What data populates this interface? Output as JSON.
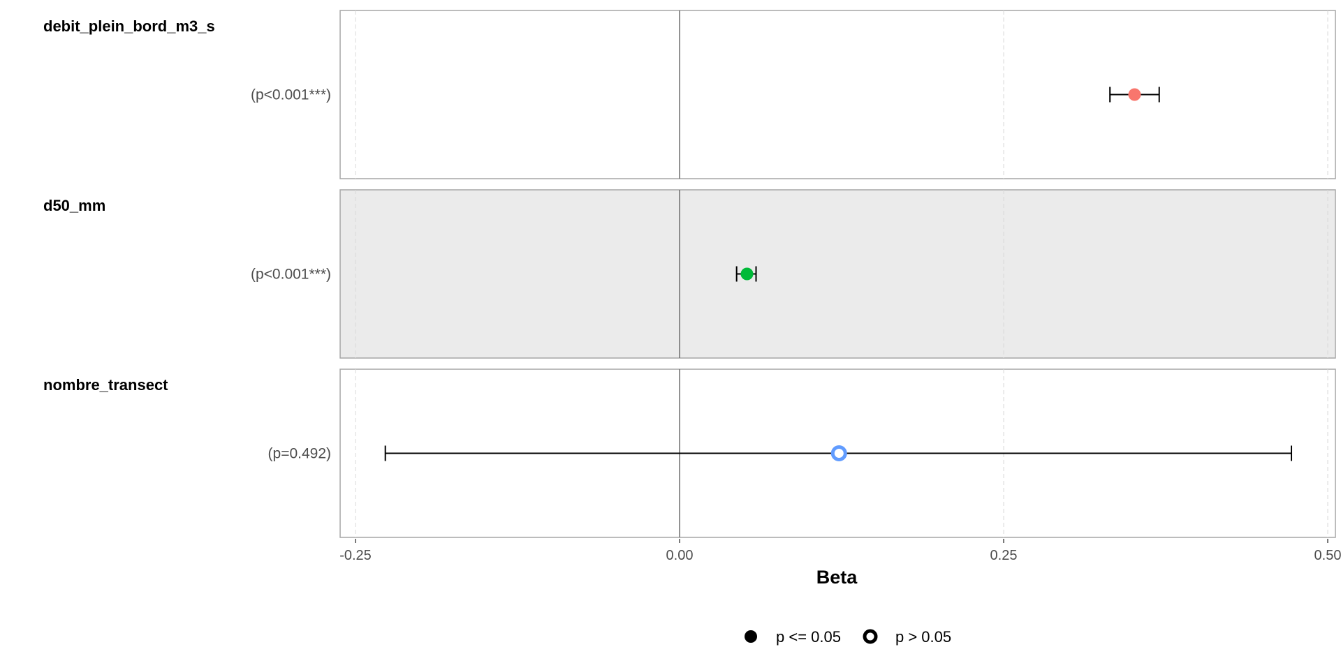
{
  "chart_data": {
    "type": "scatter",
    "subtype": "forest-plot",
    "xlabel": "Beta",
    "xlim": [
      -0.26,
      0.505
    ],
    "xticks": [
      -0.25,
      0.0,
      0.25,
      0.5
    ],
    "xtick_labels": [
      "-0.25",
      "0.00",
      "0.25",
      "0.50"
    ],
    "reference_line": 0.0,
    "grid": true,
    "facets": [
      {
        "name": "debit_plein_bord_m3_s",
        "p_label": "(p<0.001***)",
        "estimate": 0.351,
        "ci_low": 0.332,
        "ci_high": 0.37,
        "significant": true,
        "color": "#f8766d",
        "shaded": false
      },
      {
        "name": "d50_mm",
        "p_label": "(p<0.001***)",
        "estimate": 0.052,
        "ci_low": 0.044,
        "ci_high": 0.059,
        "significant": true,
        "color": "#00ba38",
        "shaded": true
      },
      {
        "name": "nombre_transect",
        "p_label": "(p=0.492)",
        "estimate": 0.123,
        "ci_low": -0.227,
        "ci_high": 0.472,
        "significant": false,
        "color": "#619cff",
        "shaded": false
      }
    ],
    "legend": {
      "position": "bottom",
      "items": [
        {
          "label": "p <= 0.05",
          "shape": "filled-circle"
        },
        {
          "label": "p > 0.05",
          "shape": "open-circle"
        }
      ]
    }
  }
}
